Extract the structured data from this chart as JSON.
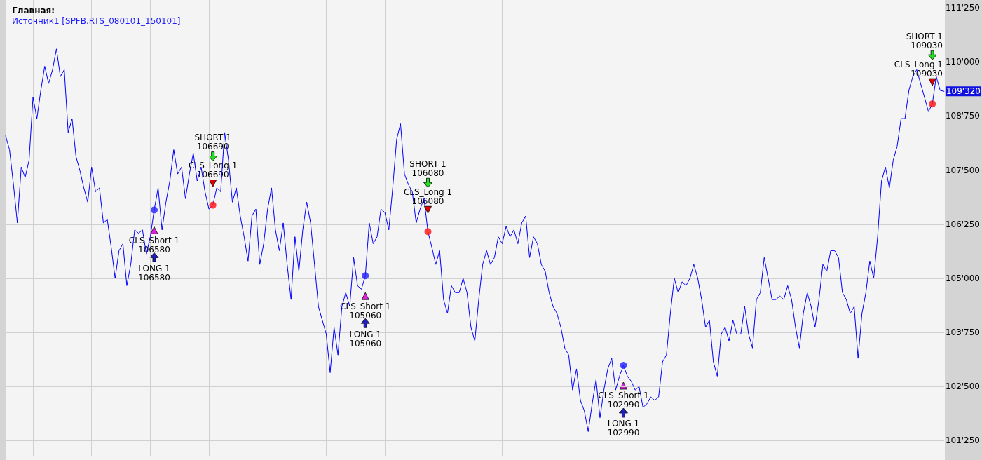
{
  "chart_data": {
    "type": "line",
    "title": "Главная:",
    "subtitle": "Источник1 [SPFB.RTS_080101_150101]",
    "categories": [
      null,
      null,
      null,
      null,
      null,
      null,
      null,
      null,
      null,
      null,
      null,
      null,
      null,
      null,
      null,
      null,
      null,
      null,
      null,
      null,
      null,
      null,
      null,
      null,
      null,
      null,
      null,
      null,
      null,
      null,
      null,
      null,
      null,
      null,
      null,
      null,
      null,
      null,
      null,
      null,
      null,
      null,
      null,
      null,
      null,
      null,
      null,
      null,
      null,
      null,
      null,
      null,
      null,
      null,
      null,
      null,
      null,
      null,
      null,
      null,
      null,
      null,
      null,
      null,
      null,
      null,
      null,
      null,
      null,
      null,
      null,
      null,
      null,
      null,
      null,
      null,
      null,
      null,
      null,
      null,
      null,
      null,
      null,
      null,
      null,
      null,
      null,
      null,
      null,
      null,
      null,
      null,
      null,
      null,
      null,
      null,
      null,
      null,
      null,
      null,
      null,
      null,
      null,
      null,
      null,
      null,
      null,
      null,
      null,
      null,
      null,
      null,
      null,
      null,
      null,
      null,
      null,
      null,
      null,
      null,
      null,
      null,
      null,
      null,
      null,
      null,
      null,
      null,
      null,
      null,
      null,
      null,
      null,
      null,
      null,
      null,
      null,
      null,
      null,
      null,
      null,
      null,
      null,
      null,
      null,
      null,
      null,
      null,
      null,
      null,
      null,
      null,
      null,
      null,
      null,
      null,
      null,
      null,
      null,
      null,
      null,
      null,
      null,
      null,
      null,
      null,
      null,
      null,
      null,
      null,
      null,
      null,
      null,
      null,
      null,
      null,
      null,
      null,
      null,
      null,
      null,
      null,
      null,
      null,
      null,
      null,
      null,
      null,
      null,
      null,
      null,
      null,
      null,
      null,
      null,
      null,
      null,
      null,
      null,
      null,
      null,
      null,
      null,
      null,
      null,
      null,
      null,
      null,
      null,
      null,
      null,
      null,
      null,
      null,
      null,
      null,
      null,
      null,
      null,
      null,
      null,
      null,
      null,
      null,
      null,
      null,
      null,
      null,
      null,
      null,
      null,
      null,
      null,
      null,
      null,
      null,
      null,
      null,
      null,
      null,
      null
    ],
    "ylim": [
      100900,
      111430
    ],
    "yticks": [
      {
        "value": 101250,
        "label": "101'250"
      },
      {
        "value": 102500,
        "label": "102'500"
      },
      {
        "value": 103750,
        "label": "103'750"
      },
      {
        "value": 105000,
        "label": "105'000"
      },
      {
        "value": 106250,
        "label": "106'250"
      },
      {
        "value": 107500,
        "label": "107'500"
      },
      {
        "value": 108750,
        "label": "108'750"
      },
      {
        "value": 110000,
        "label": "110'000"
      },
      {
        "value": 111250,
        "label": "111'250"
      }
    ],
    "grid": true,
    "tick_labels": "y",
    "series": [
      {
        "color": "#0000ff",
        "marker": "none",
        "line_style": "solid",
        "values": [
          108290,
          107970,
          107170,
          106280,
          107570,
          107330,
          107730,
          109180,
          108690,
          109340,
          109900,
          109500,
          109820,
          110300,
          109660,
          109820,
          108370,
          108690,
          107810,
          107490,
          107090,
          106760,
          107570,
          107000,
          107090,
          106280,
          106360,
          105720,
          105000,
          105640,
          105800,
          104830,
          105320,
          106120,
          106040,
          106120,
          105560,
          105960,
          106580,
          107090,
          106120,
          106760,
          107250,
          107970,
          107410,
          107570,
          106840,
          107410,
          107890,
          107250,
          107570,
          107000,
          106600,
          106690,
          107090,
          107000,
          108370,
          107730,
          106760,
          107090,
          106440,
          105960,
          105400,
          106440,
          106600,
          105320,
          105800,
          106600,
          107090,
          106120,
          105640,
          106280,
          105320,
          104510,
          105960,
          105160,
          106120,
          106760,
          106280,
          105320,
          104350,
          104030,
          103710,
          102820,
          103870,
          103230,
          104350,
          104670,
          104350,
          105480,
          104830,
          104750,
          105060,
          106280,
          105800,
          105960,
          106600,
          106520,
          106120,
          107090,
          108210,
          108570,
          107410,
          107170,
          107000,
          106280,
          106600,
          106840,
          106080,
          105720,
          105320,
          105640,
          104510,
          104190,
          104830,
          104670,
          104670,
          105000,
          104670,
          103870,
          103550,
          104510,
          105320,
          105640,
          105320,
          105480,
          105960,
          105800,
          106200,
          105960,
          106120,
          105800,
          106280,
          106440,
          105480,
          105960,
          105800,
          105320,
          105160,
          104670,
          104350,
          104190,
          103870,
          103390,
          103230,
          102420,
          102910,
          102180,
          101940,
          101460,
          102100,
          102660,
          101780,
          102420,
          102910,
          103150,
          102420,
          102740,
          102990,
          102740,
          102620,
          102420,
          102500,
          102020,
          102100,
          102260,
          102180,
          102260,
          103070,
          103230,
          104190,
          105000,
          104670,
          104920,
          104830,
          105000,
          105320,
          105000,
          104510,
          103870,
          104030,
          103070,
          102740,
          103710,
          103870,
          103550,
          104030,
          103710,
          103710,
          104350,
          103710,
          103390,
          104510,
          104670,
          105480,
          105000,
          104510,
          104510,
          104590,
          104510,
          104830,
          104510,
          103870,
          103390,
          104190,
          104670,
          104350,
          103870,
          104510,
          105320,
          105160,
          105640,
          105640,
          105480,
          104670,
          104510,
          104190,
          104350,
          103150,
          104190,
          104670,
          105400,
          105000,
          105960,
          107250,
          107570,
          107090,
          107730,
          108050,
          108690,
          108690,
          109340,
          109660,
          109820,
          109500,
          109180,
          108850,
          109030,
          109660,
          109340,
          109320
        ]
      },
      {
        "type": "scatter",
        "color": "#2020ff",
        "marker": "circle",
        "values": [
          null,
          null,
          null,
          null,
          null,
          null,
          null,
          null,
          null,
          null,
          null,
          null,
          null,
          null,
          null,
          null,
          null,
          null,
          null,
          null,
          null,
          null,
          null,
          null,
          null,
          null,
          null,
          null,
          null,
          null,
          null,
          null,
          null,
          null,
          null,
          null,
          null,
          null,
          106580,
          null,
          null,
          null,
          null,
          null,
          null,
          null,
          null,
          null,
          null,
          null,
          null,
          null,
          null,
          null,
          null,
          null,
          null,
          null,
          null,
          null,
          null,
          null,
          null,
          null,
          null,
          null,
          null,
          null,
          null,
          null,
          null,
          null,
          null,
          null,
          null,
          null,
          null,
          null,
          null,
          null,
          null,
          null,
          null,
          null,
          null,
          null,
          null,
          null,
          null,
          null,
          null,
          null,
          105060,
          null,
          null,
          null,
          null,
          null,
          null,
          null,
          null,
          null,
          null,
          null,
          null,
          null,
          null,
          null,
          null,
          null,
          null,
          null,
          null,
          null,
          null,
          null,
          null,
          null,
          null,
          null,
          null,
          null,
          null,
          null,
          null,
          null,
          null,
          null,
          null,
          null,
          null,
          null,
          null,
          null,
          null,
          null,
          null,
          null,
          null,
          null,
          null,
          null,
          null,
          null,
          null,
          null,
          null,
          null,
          null,
          null,
          null,
          null,
          null,
          null,
          null,
          null,
          null,
          null,
          102990,
          null,
          null,
          null,
          null,
          null,
          null,
          null,
          null,
          null,
          null,
          null,
          null,
          null,
          null,
          null,
          null,
          null,
          null,
          null,
          null,
          null,
          null,
          null,
          null,
          null,
          null,
          null,
          null,
          null,
          null,
          null,
          null,
          null,
          null,
          null,
          null,
          null,
          null,
          null,
          null,
          null,
          null,
          null,
          null,
          null,
          null,
          null,
          null,
          null,
          null,
          null,
          null,
          null,
          null,
          null,
          null,
          null,
          null,
          null,
          null,
          null,
          null,
          null,
          null,
          null,
          null,
          null,
          null,
          null,
          null,
          null,
          null,
          null,
          null,
          null,
          null,
          null,
          null,
          null,
          null,
          null,
          null
        ]
      },
      {
        "type": "scatter",
        "color": "#ff1010",
        "marker": "circle",
        "values": [
          null,
          null,
          null,
          null,
          null,
          null,
          null,
          null,
          null,
          null,
          null,
          null,
          null,
          null,
          null,
          null,
          null,
          null,
          null,
          null,
          null,
          null,
          null,
          null,
          null,
          null,
          null,
          null,
          null,
          null,
          null,
          null,
          null,
          null,
          null,
          null,
          null,
          null,
          null,
          null,
          null,
          null,
          null,
          null,
          null,
          null,
          null,
          null,
          null,
          null,
          null,
          null,
          null,
          106690,
          null,
          null,
          null,
          null,
          null,
          null,
          null,
          null,
          null,
          null,
          null,
          null,
          null,
          null,
          null,
          null,
          null,
          null,
          null,
          null,
          null,
          null,
          null,
          null,
          null,
          null,
          null,
          null,
          null,
          null,
          null,
          null,
          null,
          null,
          null,
          null,
          null,
          null,
          null,
          null,
          null,
          null,
          null,
          null,
          null,
          null,
          null,
          null,
          null,
          null,
          null,
          null,
          null,
          null,
          106080,
          null,
          null,
          null,
          null,
          null,
          null,
          null,
          null,
          null,
          null,
          null,
          null,
          null,
          null,
          null,
          null,
          null,
          null,
          null,
          null,
          null,
          null,
          null,
          null,
          null,
          null,
          null,
          null,
          null,
          null,
          null,
          null,
          null,
          null,
          null,
          null,
          null,
          null,
          null,
          null,
          null,
          null,
          null,
          null,
          null,
          null,
          null,
          null,
          null,
          null,
          null,
          null,
          null,
          null,
          null,
          null,
          null,
          null,
          null,
          null,
          null,
          null,
          null,
          null,
          null,
          null,
          null,
          null,
          null,
          null,
          null,
          null,
          null,
          null,
          null,
          null,
          null,
          null,
          null,
          null,
          null,
          null,
          null,
          null,
          null,
          null,
          null,
          null,
          null,
          null,
          null,
          null,
          null,
          null,
          null,
          null,
          null,
          null,
          null,
          null,
          null,
          null,
          null,
          null,
          null,
          null,
          null,
          null,
          null,
          null,
          null,
          null,
          null,
          null,
          null,
          null,
          null,
          null,
          null,
          null,
          null,
          null,
          null,
          null,
          null,
          null,
          null,
          null,
          109030,
          null,
          null,
          null
        ]
      }
    ],
    "annotations": [
      "CLS_Short 1\n106580",
      "LONG 1\n106580",
      "SHORT 1\n106690",
      "CLS_Long 1\n106690",
      "CLS_Short 1\n105060",
      "LONG 1\n105060",
      "SHORT 1\n106080",
      "CLS_Long 1\n106080",
      "CLS_Short 1\n102990",
      "LONG 1\n102990",
      "SHORT 1\n109030",
      "CLS_Long 1\n109030",
      "109'320"
    ]
  }
}
